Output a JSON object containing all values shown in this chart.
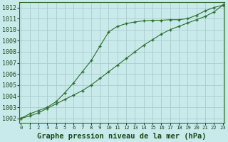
{
  "background_color": "#c8eaea",
  "grid_color": "#aacccc",
  "line_color": "#2d6e2d",
  "marker_color": "#2d6e2d",
  "title": "Graphe pression niveau de la mer (hPa)",
  "xlabel_hours": [
    0,
    1,
    2,
    3,
    4,
    5,
    6,
    7,
    8,
    9,
    10,
    11,
    12,
    13,
    14,
    15,
    16,
    17,
    18,
    19,
    20,
    21,
    22,
    23
  ],
  "yticks": [
    1002,
    1003,
    1004,
    1005,
    1006,
    1007,
    1008,
    1009,
    1010,
    1011,
    1012
  ],
  "ylim": [
    1001.6,
    1012.5
  ],
  "xlim": [
    -0.2,
    23.2
  ],
  "series1_upper": {
    "x": [
      0,
      1,
      2,
      3,
      4,
      5,
      6,
      7,
      8,
      9,
      10,
      11,
      12,
      13,
      14,
      15,
      16,
      17,
      18,
      19,
      20,
      21,
      22,
      23
    ],
    "y": [
      1002.0,
      1002.4,
      1002.7,
      1003.0,
      1003.5,
      1004.3,
      1005.2,
      1006.2,
      1007.2,
      1008.5,
      1009.8,
      1010.3,
      1010.55,
      1010.7,
      1010.8,
      1010.85,
      1010.85,
      1010.9,
      1010.9,
      1011.0,
      1011.3,
      1011.7,
      1012.0,
      1012.2
    ]
  },
  "series2_lower": {
    "x": [
      0,
      1,
      2,
      3,
      4,
      5,
      6,
      7,
      8,
      9,
      10,
      11,
      12,
      13,
      14,
      15,
      16,
      17,
      18,
      19,
      20,
      21,
      22,
      23
    ],
    "y": [
      1002.0,
      1002.2,
      1002.5,
      1002.9,
      1003.3,
      1003.7,
      1004.1,
      1004.5,
      1005.0,
      1005.6,
      1006.2,
      1006.8,
      1007.4,
      1008.0,
      1008.6,
      1009.1,
      1009.6,
      1010.0,
      1010.3,
      1010.6,
      1010.9,
      1011.2,
      1011.6,
      1012.2
    ]
  },
  "title_fontsize": 7.5,
  "tick_fontsize": 6,
  "xtick_fontsize": 5.2,
  "title_color": "#1a4a1a",
  "tick_color": "#1a4a1a"
}
